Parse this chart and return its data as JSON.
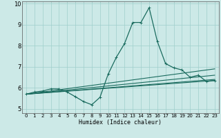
{
  "xlabel": "Humidex (Indice chaleur)",
  "bg_color": "#cce9e7",
  "line_color": "#1a6b5e",
  "grid_color": "#9fcfcb",
  "xlim": [
    -0.5,
    23.5
  ],
  "ylim": [
    4.8,
    10.1
  ],
  "yticks": [
    5,
    6,
    7,
    8,
    9,
    10
  ],
  "xticks": [
    0,
    1,
    2,
    3,
    4,
    5,
    6,
    7,
    8,
    9,
    10,
    11,
    12,
    13,
    14,
    15,
    16,
    17,
    18,
    19,
    20,
    21,
    22,
    23
  ],
  "series1_x": [
    0,
    1,
    2,
    3,
    4,
    5,
    6,
    7,
    8,
    9,
    10,
    11,
    12,
    13,
    14,
    15,
    16,
    17,
    18,
    19,
    20,
    21,
    22,
    23
  ],
  "series1_y": [
    5.7,
    5.8,
    5.85,
    5.95,
    5.95,
    5.8,
    5.58,
    5.35,
    5.2,
    5.55,
    6.65,
    7.45,
    8.1,
    9.1,
    9.1,
    9.8,
    8.2,
    7.15,
    6.95,
    6.85,
    6.5,
    6.6,
    6.3,
    6.35
  ],
  "series2_x": [
    0,
    23
  ],
  "series2_y": [
    5.7,
    6.4
  ],
  "series3_x": [
    0,
    23
  ],
  "series3_y": [
    5.7,
    6.35
  ],
  "series4_x": [
    0,
    23
  ],
  "series4_y": [
    5.7,
    6.6
  ],
  "series5_x": [
    0,
    23
  ],
  "series5_y": [
    5.7,
    6.9
  ]
}
